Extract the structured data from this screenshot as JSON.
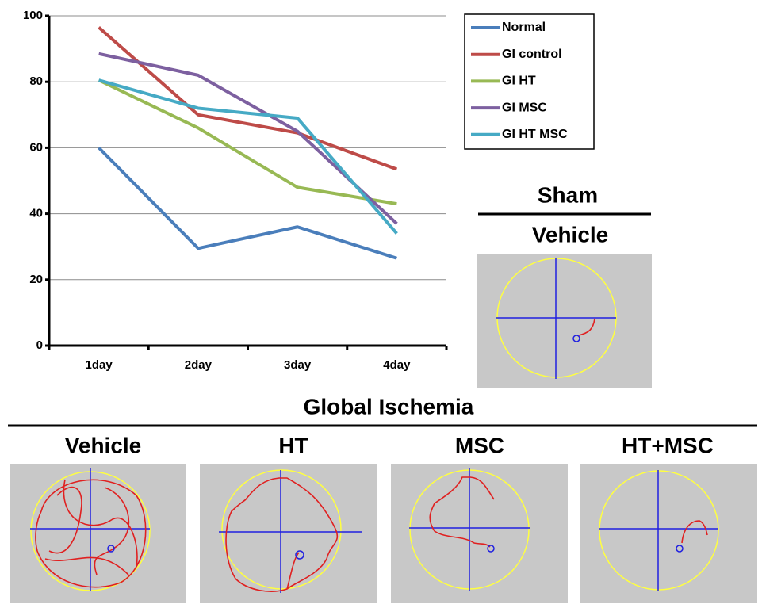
{
  "chart_data": {
    "type": "line",
    "categories": [
      "1day",
      "2day",
      "3day",
      "4day"
    ],
    "series": [
      {
        "name": "Normal",
        "color": "#4a7ebb",
        "values": [
          60,
          29.5,
          36,
          26.5
        ]
      },
      {
        "name": "GI control",
        "color": "#be4b48",
        "values": [
          96.5,
          70,
          64.5,
          53.5
        ]
      },
      {
        "name": "GI HT",
        "color": "#98b954",
        "values": [
          80.5,
          66,
          48,
          43
        ]
      },
      {
        "name": "GI MSC",
        "color": "#7d60a0",
        "values": [
          88.5,
          82,
          65,
          37
        ]
      },
      {
        "name": "GI HT MSC",
        "color": "#46aac5",
        "values": [
          80.5,
          72,
          69,
          34
        ]
      }
    ],
    "ylim": [
      0,
      100
    ],
    "yticks": [
      0,
      20,
      40,
      60,
      80,
      100
    ],
    "grid": true,
    "legend": "top-right"
  },
  "sham": {
    "title": "Sham",
    "label": "Vehicle"
  },
  "ischemia": {
    "title": "Global Ischemia",
    "panels": [
      "Vehicle",
      "HT",
      "MSC",
      "HT+MSC"
    ]
  }
}
